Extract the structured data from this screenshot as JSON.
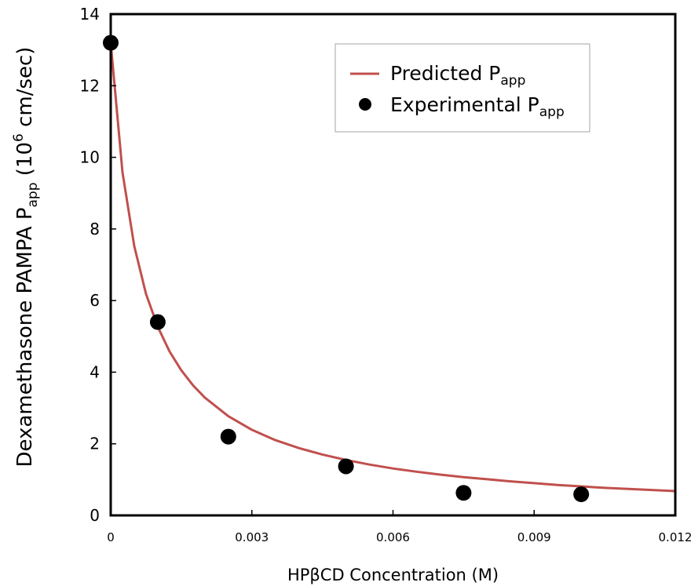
{
  "chart_data": {
    "type": "scatter",
    "title": "",
    "xlabel": "HPβCD Concentration (M)",
    "ylabel": {
      "main": "Dexamethasone PAMPA P",
      "sub": "app",
      "rest": " (10",
      "sup": "6",
      "tail": " cm/sec)"
    },
    "xlim": [
      0,
      0.012
    ],
    "ylim": [
      0,
      14
    ],
    "x_ticks": [
      {
        "value": 0,
        "label": "0"
      },
      {
        "value": 0.003,
        "label": "0.003"
      },
      {
        "value": 0.006,
        "label": "0.006"
      },
      {
        "value": 0.009,
        "label": "0.009"
      },
      {
        "value": 0.012,
        "label": "0.012"
      }
    ],
    "y_ticks": [
      {
        "value": 0,
        "label": "0"
      },
      {
        "value": 2,
        "label": "2"
      },
      {
        "value": 4,
        "label": "4"
      },
      {
        "value": 6,
        "label": "6"
      },
      {
        "value": 8,
        "label": "8"
      },
      {
        "value": 10,
        "label": "10"
      },
      {
        "value": 12,
        "label": "12"
      },
      {
        "value": 14,
        "label": "14"
      }
    ],
    "grid": false,
    "legend_position": "top-right",
    "series": [
      {
        "name": "Predicted P",
        "name_sub": "app",
        "kind": "line",
        "color": "#c0504d",
        "x": [
          0,
          0.00025,
          0.0005,
          0.00075,
          0.001,
          0.00125,
          0.0015,
          0.00175,
          0.002,
          0.0025,
          0.003,
          0.0035,
          0.004,
          0.0045,
          0.005,
          0.0055,
          0.006,
          0.0065,
          0.007,
          0.0075,
          0.008,
          0.0085,
          0.009,
          0.0095,
          0.01,
          0.0105,
          0.011,
          0.0115,
          0.012
        ],
        "y": [
          13.2,
          9.58,
          7.52,
          6.19,
          5.27,
          4.58,
          4.05,
          3.63,
          3.29,
          2.77,
          2.39,
          2.1,
          1.88,
          1.7,
          1.55,
          1.42,
          1.31,
          1.22,
          1.14,
          1.07,
          1.01,
          0.95,
          0.9,
          0.85,
          0.81,
          0.77,
          0.74,
          0.71,
          0.68
        ]
      },
      {
        "name": "Experimental P",
        "name_sub": "app",
        "kind": "scatter",
        "color": "#000000",
        "x": [
          0,
          0.001,
          0.0025,
          0.005,
          0.0075,
          0.01
        ],
        "y": [
          13.2,
          5.4,
          2.2,
          1.37,
          0.63,
          0.59
        ]
      }
    ]
  }
}
